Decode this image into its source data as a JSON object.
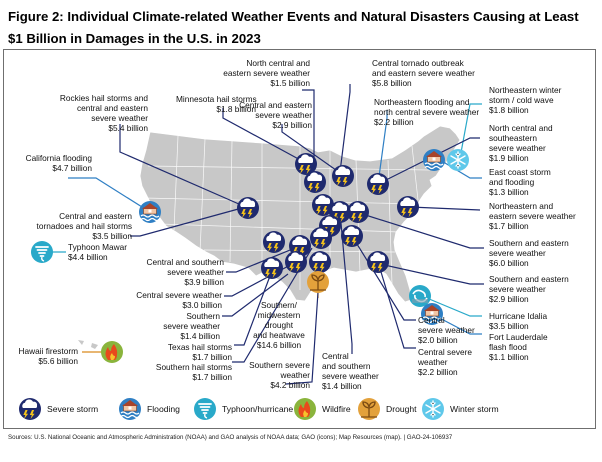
{
  "figure": {
    "title": "Figure 2: Individual Climate-related Weather Events and Natural Disasters Causing at Least $1 Billion in Damages in the U.S. in 2023",
    "source": "Sources: U.S. National Oceanic and Atmospheric Administration (NOAA) and GAO analysis of NOAA data; GAO (icons); Map Resources (map).  |  GAO-24-106937"
  },
  "events": [
    {
      "id": "rockies",
      "lines": [
        "Rockies hail storms and",
        "central and eastern",
        "severe weather"
      ],
      "amount": "$5.4 billion",
      "type": "storm"
    },
    {
      "id": "minnesota",
      "lines": [
        "Minnesota hail storms"
      ],
      "amount": "$1.8 billion",
      "type": "storm"
    },
    {
      "id": "nc-eastern",
      "lines": [
        "North central and",
        "eastern severe weather"
      ],
      "amount": "$1.5 billion",
      "type": "storm"
    },
    {
      "id": "central-eastern-29",
      "lines": [
        "Central and eastern",
        "severe weather"
      ],
      "amount": "$2.9 billion",
      "type": "storm"
    },
    {
      "id": "tornado-outbreak",
      "lines": [
        "Central tornado outbreak",
        "and eastern severe weather"
      ],
      "amount": "$5.8 billion",
      "type": "storm"
    },
    {
      "id": "ne-flooding",
      "lines": [
        "Northeastern flooding and",
        "north central severe weather"
      ],
      "amount": "$2.2 billion",
      "type": "flood"
    },
    {
      "id": "ne-winter",
      "lines": [
        "Northeastern winter",
        "storm / cold wave"
      ],
      "amount": "$1.8 billion",
      "type": "winter"
    },
    {
      "id": "nc-southeastern",
      "lines": [
        "North central and",
        "southeastern",
        "severe weather"
      ],
      "amount": "$1.9 billion",
      "type": "storm"
    },
    {
      "id": "east-coast",
      "lines": [
        "East coast storm",
        "and flooding"
      ],
      "amount": "$1.3 billion",
      "type": "flood"
    },
    {
      "id": "ne-eastern",
      "lines": [
        "Northeastern and",
        "eastern severe weather"
      ],
      "amount": "$1.7 billion",
      "type": "storm"
    },
    {
      "id": "ca-flooding",
      "lines": [
        "California flooding"
      ],
      "amount": "$4.7 billion",
      "type": "flood"
    },
    {
      "id": "central-eastern-tornadoes",
      "lines": [
        "Central and eastern",
        "tornadoes and hail storms"
      ],
      "amount": "$3.5 billion",
      "type": "storm"
    },
    {
      "id": "mawar",
      "lines": [
        "Typhoon Mawar"
      ],
      "amount": "$4.4 billion",
      "type": "typhoon"
    },
    {
      "id": "central-southern-39",
      "lines": [
        "Central and southern",
        "severe weather"
      ],
      "amount": "$3.9 billion",
      "type": "storm"
    },
    {
      "id": "southern-eastern-60",
      "lines": [
        "Southern and eastern",
        "severe weather"
      ],
      "amount": "$6.0 billion",
      "type": "storm"
    },
    {
      "id": "southern-eastern-29",
      "lines": [
        "Southern and eastern",
        "severe weather"
      ],
      "amount": "$2.9 billion",
      "type": "storm"
    },
    {
      "id": "central-30",
      "lines": [
        "Central severe weather"
      ],
      "amount": "$3.0 billion",
      "type": "storm"
    },
    {
      "id": "southern-14",
      "lines": [
        "Southern",
        "severe weather"
      ],
      "amount": "$1.4 billion",
      "type": "storm"
    },
    {
      "id": "texas-hail",
      "lines": [
        "Texas hail storms"
      ],
      "amount": "$1.7 billion",
      "type": "storm"
    },
    {
      "id": "southern-hail",
      "lines": [
        "Southern hail storms"
      ],
      "amount": "$1.7 billion",
      "type": "storm"
    },
    {
      "id": "drought",
      "lines": [
        "Southern/",
        "midwestern",
        "drought",
        "and heatwave"
      ],
      "amount": "$14.6 billion",
      "type": "drought"
    },
    {
      "id": "southern-42",
      "lines": [
        "Southern severe",
        "weather"
      ],
      "amount": "$4.2 billion",
      "type": "storm"
    },
    {
      "id": "central-southern-14",
      "lines": [
        "Central",
        "and southern",
        "severe weather"
      ],
      "amount": "$1.4 billion",
      "type": "storm"
    },
    {
      "id": "central-20",
      "lines": [
        "Central",
        "severe weather"
      ],
      "amount": "$2.0 billion",
      "type": "storm"
    },
    {
      "id": "central-22",
      "lines": [
        "Central severe",
        "weather"
      ],
      "amount": "$2.2 billion",
      "type": "storm"
    },
    {
      "id": "idalia",
      "lines": [
        "Hurricane Idalia"
      ],
      "amount": "$3.5 billion",
      "type": "hurricane"
    },
    {
      "id": "fort-lauderdale",
      "lines": [
        "Fort Lauderdale",
        "flash flood"
      ],
      "amount": "$1.1 billion",
      "type": "flood"
    },
    {
      "id": "hawaii",
      "lines": [
        "Hawaii firestorm"
      ],
      "amount": "$5.6 billion",
      "type": "wildfire"
    }
  ],
  "legend": [
    {
      "type": "storm",
      "label": "Severe storm"
    },
    {
      "type": "flood",
      "label": "Flooding"
    },
    {
      "type": "typhoon",
      "label": "Typhoon/hurricane"
    },
    {
      "type": "wildfire",
      "label": "Wildfire"
    },
    {
      "type": "drought",
      "label": "Drought"
    },
    {
      "type": "winter",
      "label": "Winter storm"
    }
  ],
  "colors": {
    "storm_fill": "#1f2a6e",
    "storm_bolt": "#f4c21b",
    "flood_fill": "#2f7fc4",
    "typhoon_fill": "#29a9c9",
    "wildfire_fill": "#8ab43c",
    "drought_fill": "#e3a13b",
    "winter_fill": "#5fc8ea",
    "map_fill": "#c8c8c8",
    "storm_line": "#1f2a6e",
    "flood_line": "#2f7fc4",
    "typhoon_line": "#29a9c9",
    "wildfire_line": "#d98a1e",
    "drought_line": "#d98a1e",
    "winter_line": "#29a9c9"
  }
}
